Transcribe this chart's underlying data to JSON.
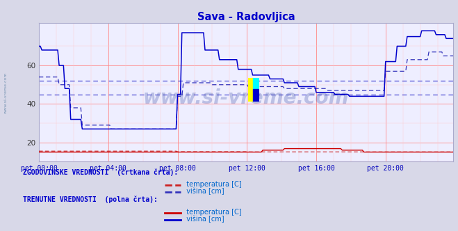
{
  "title": "Sava - Radovljica",
  "title_color": "#0000cc",
  "bg_color": "#d8d8e8",
  "plot_bg_color": "#eeeeff",
  "xticklabels": [
    "pet 00:00",
    "pet 04:00",
    "pet 08:00",
    "pet 12:00",
    "pet 16:00",
    "pet 20:00"
  ],
  "xtick_positions": [
    0,
    48,
    96,
    144,
    192,
    240
  ],
  "ylim": [
    10,
    82
  ],
  "yticks": [
    20,
    40,
    60
  ],
  "grid_red": "#ff8888",
  "grid_pink": "#ffcccc",
  "hline1_y": 45,
  "hline2_y": 52,
  "hline_color": "#3333cc",
  "watermark": "www.si-vreme.com",
  "watermark_color": "#4455aa",
  "watermark_alpha": 0.3,
  "legend_text1": "ZGODOVINSKE VREDNOSTI  (črtkana črta):",
  "legend_text2": "TRENUTNE VREDNOSTI  (polna črta):",
  "legend_label_temp": "  temperatura [C]",
  "legend_label_vis": "  višina [cm]",
  "sidebar_text": "www.si-vreme.com",
  "n_points": 288,
  "solid_blue": "#0000cc",
  "dashed_blue": "#3333bb",
  "solid_red": "#cc0000",
  "dashed_red": "#cc2222"
}
